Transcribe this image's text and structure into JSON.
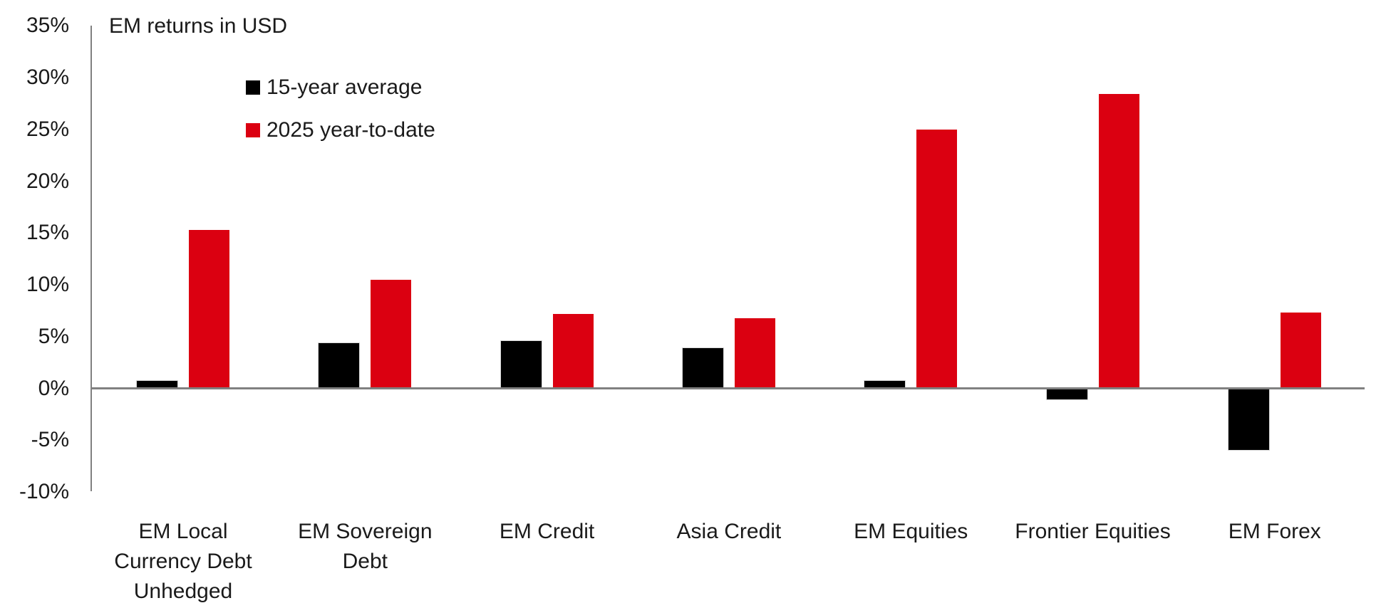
{
  "title": "EM returns in USD",
  "legend": {
    "items": [
      {
        "label": "15-year average",
        "color": "#000000"
      },
      {
        "label": "2025 year-to-date",
        "color": "#db0011"
      }
    ]
  },
  "y_axis": {
    "tick_labels": [
      "35%",
      "30%",
      "25%",
      "20%",
      "15%",
      "10%",
      "5%",
      "0%",
      "-5%",
      "-10%"
    ],
    "tick_values": [
      35,
      30,
      25,
      20,
      15,
      10,
      5,
      0,
      -5,
      -10
    ]
  },
  "chart_data": {
    "type": "bar",
    "title": "EM returns in USD",
    "unit": "percent",
    "categories": [
      "EM Local Currency Debt Unhedged",
      "EM Sovereign Debt",
      "EM Credit",
      "Asia Credit",
      "EM Equities",
      "Frontier Equities",
      "EM Forex"
    ],
    "category_display_labels": [
      "EM Local\nCurrency Debt\nUnhedged",
      "EM Sovereign\nDebt",
      "EM Credit",
      "Asia Credit",
      "EM Equities",
      "Frontier Equities",
      "EM Forex"
    ],
    "series": [
      {
        "name": "15-year average",
        "color": "#000000",
        "values": [
          0.7,
          4.4,
          4.6,
          3.9,
          0.7,
          -1.0,
          -5.9
        ]
      },
      {
        "name": "2025 year-to-date",
        "color": "#db0011",
        "values": [
          15.3,
          10.5,
          7.2,
          6.8,
          25.0,
          28.4,
          7.3
        ]
      }
    ],
    "ylim": [
      -10,
      35
    ],
    "y_step": 5,
    "grid": false,
    "legend_position": "top-left-inside",
    "axis_color": "#808080"
  },
  "colors": {
    "bar_black": "#000000",
    "bar_red": "#db0011",
    "axis_gray": "#808080",
    "text": "#1a1a1a",
    "background": "#ffffff"
  }
}
